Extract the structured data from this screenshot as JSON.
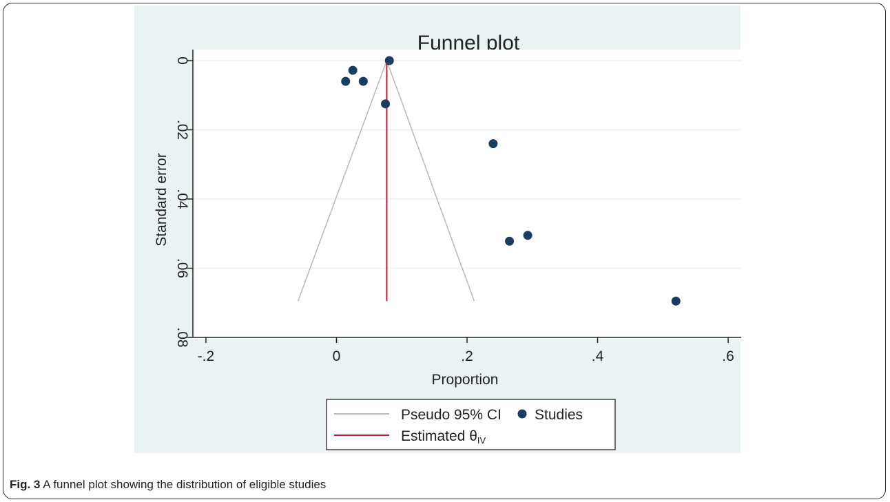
{
  "caption": {
    "label": "Fig. 3",
    "text": "A funnel plot showing the distribution of eligible studies"
  },
  "chart_data": {
    "type": "scatter",
    "title": "Funnel plot",
    "xlabel": "Proportion",
    "ylabel": "Standard error",
    "xlim": [
      -0.22,
      0.62
    ],
    "ylim": [
      0.0,
      0.08
    ],
    "y_reversed": true,
    "x_ticks": [
      -0.2,
      0,
      0.2,
      0.4,
      0.6
    ],
    "x_tick_labels": [
      "-.2",
      "0",
      ".2",
      ".4",
      ".6"
    ],
    "y_ticks": [
      0,
      0.02,
      0.04,
      0.06,
      0.08
    ],
    "y_tick_labels": [
      "0",
      ".02",
      ".04",
      ".06",
      ".08"
    ],
    "grid": true,
    "legend_position": "bottom",
    "legend": {
      "ci_label": "Pseudo 95% CI",
      "studies_label": "Studies",
      "estimate_label": "Estimated θ",
      "estimate_subscript": "IV"
    },
    "estimate": 0.077,
    "pseudo_ci": {
      "se_max": 0.0695,
      "lower_at_max": -0.059,
      "upper_at_max": 0.211
    },
    "studies": [
      {
        "x": 0.081,
        "y": 0.0
      },
      {
        "x": 0.025,
        "y": 0.0028
      },
      {
        "x": 0.014,
        "y": 0.006
      },
      {
        "x": 0.041,
        "y": 0.006
      },
      {
        "x": 0.075,
        "y": 0.0125
      },
      {
        "x": 0.24,
        "y": 0.024
      },
      {
        "x": 0.265,
        "y": 0.0522
      },
      {
        "x": 0.293,
        "y": 0.0505
      },
      {
        "x": 0.52,
        "y": 0.0695
      }
    ],
    "colors": {
      "panel_bg": "#eaf2f3",
      "plot_bg": "#ffffff",
      "grid": "#eaf2f3",
      "ci_line": "#b8b8b8",
      "estimate_line": "#c0173f",
      "points": "#1a3c61",
      "axis": "#222222"
    }
  }
}
